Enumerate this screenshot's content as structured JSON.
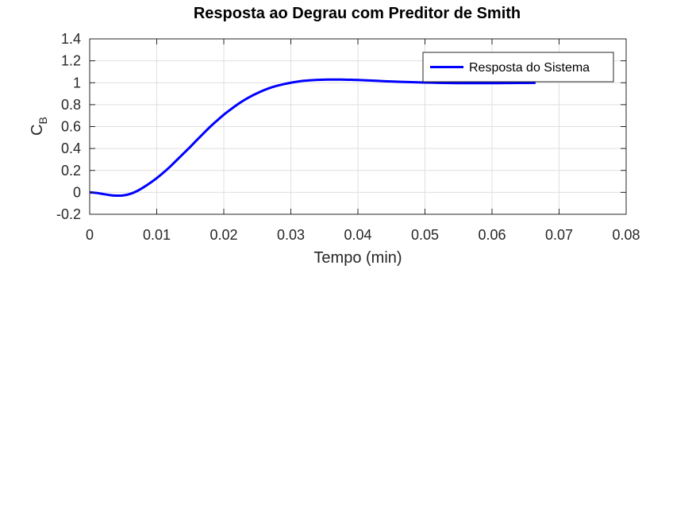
{
  "chart_data": {
    "type": "line",
    "title": "Resposta ao Degrau com Preditor de Smith",
    "xlabel": "Tempo (min)",
    "ylabel_main": "C",
    "ylabel_sub": "B",
    "xlim": [
      0,
      0.08
    ],
    "ylim": [
      -0.2,
      1.4
    ],
    "x_ticks": [
      {
        "value": 0,
        "label": "0"
      },
      {
        "value": 0.01,
        "label": "0.01"
      },
      {
        "value": 0.02,
        "label": "0.02"
      },
      {
        "value": 0.03,
        "label": "0.03"
      },
      {
        "value": 0.04,
        "label": "0.04"
      },
      {
        "value": 0.05,
        "label": "0.05"
      },
      {
        "value": 0.06,
        "label": "0.06"
      },
      {
        "value": 0.07,
        "label": "0.07"
      },
      {
        "value": 0.08,
        "label": "0.08"
      }
    ],
    "y_ticks": [
      {
        "value": -0.2,
        "label": "-0.2"
      },
      {
        "value": 0,
        "label": "0"
      },
      {
        "value": 0.2,
        "label": "0.2"
      },
      {
        "value": 0.4,
        "label": "0.4"
      },
      {
        "value": 0.6,
        "label": "0.6"
      },
      {
        "value": 0.8,
        "label": "0.8"
      },
      {
        "value": 1,
        "label": "1"
      },
      {
        "value": 1.2,
        "label": "1.2"
      },
      {
        "value": 1.4,
        "label": "1.4"
      }
    ],
    "grid": true,
    "legend_position": "top-right",
    "series": [
      {
        "name": "Resposta do Sistema",
        "color": "#0000ff",
        "x": [
          0,
          0.001,
          0.002,
          0.003,
          0.004,
          0.005,
          0.006,
          0.007,
          0.008,
          0.009,
          0.01,
          0.011,
          0.012,
          0.013,
          0.014,
          0.015,
          0.016,
          0.017,
          0.018,
          0.019,
          0.02,
          0.021,
          0.022,
          0.023,
          0.024,
          0.025,
          0.026,
          0.027,
          0.028,
          0.029,
          0.03,
          0.031,
          0.032,
          0.033,
          0.034,
          0.035,
          0.036,
          0.037,
          0.038,
          0.039,
          0.04,
          0.042,
          0.044,
          0.046,
          0.048,
          0.05,
          0.052,
          0.054,
          0.056,
          0.058,
          0.06,
          0.062,
          0.064,
          0.0665
        ],
        "y": [
          0,
          -0.005,
          -0.015,
          -0.025,
          -0.03,
          -0.028,
          -0.015,
          0.01,
          0.045,
          0.085,
          0.13,
          0.18,
          0.235,
          0.295,
          0.355,
          0.415,
          0.478,
          0.54,
          0.6,
          0.655,
          0.708,
          0.755,
          0.8,
          0.84,
          0.875,
          0.905,
          0.932,
          0.955,
          0.973,
          0.988,
          1.0,
          1.01,
          1.018,
          1.023,
          1.026,
          1.028,
          1.029,
          1.029,
          1.028,
          1.027,
          1.025,
          1.02,
          1.014,
          1.009,
          1.005,
          1.002,
          0.999,
          0.997,
          0.996,
          0.996,
          0.996,
          0.997,
          0.998,
          0.999
        ]
      }
    ]
  }
}
